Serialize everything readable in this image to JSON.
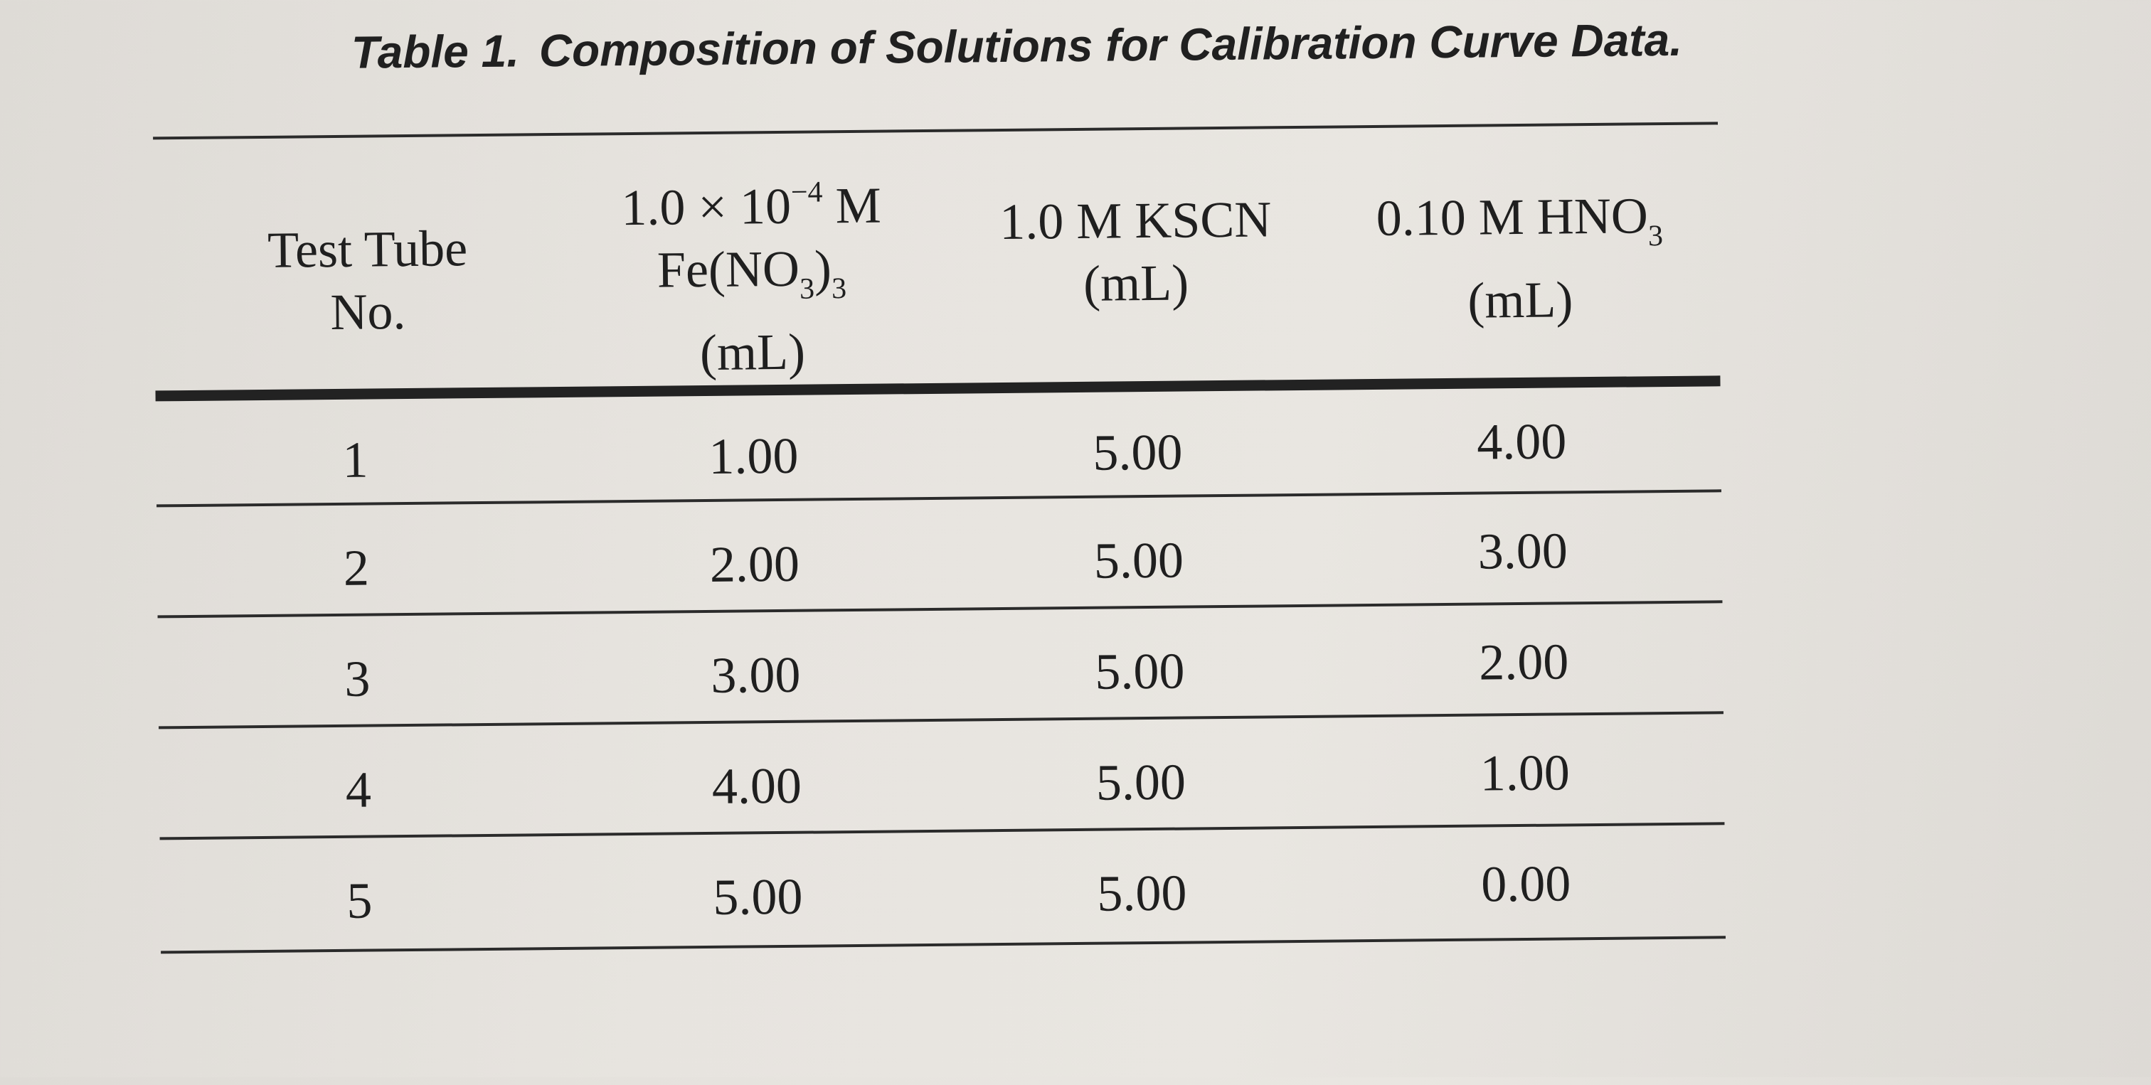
{
  "table": {
    "label": "Table 1.",
    "title": "Composition of Solutions for Calibration Curve Data.",
    "headers": {
      "col1": {
        "line1": "Test Tube",
        "line2": "No."
      },
      "col2": {
        "conc_prefix": "1.0 × 10",
        "conc_exp": "−4",
        "conc_unit": " M",
        "species_a": "Fe(NO",
        "species_sub1": "3",
        "species_b": ")",
        "species_sub2": "3",
        "unit": "(mL)"
      },
      "col3": {
        "line1": "1.0 M KSCN",
        "line2": "(mL)"
      },
      "col4": {
        "line1_main": "0.10 M HNO",
        "line1_sub": "3",
        "line2": "(mL)"
      }
    },
    "rows": [
      [
        "1",
        "1.00",
        "5.00",
        "4.00"
      ],
      [
        "2",
        "2.00",
        "5.00",
        "3.00"
      ],
      [
        "3",
        "3.00",
        "5.00",
        "2.00"
      ],
      [
        "4",
        "4.00",
        "5.00",
        "1.00"
      ],
      [
        "5",
        "5.00",
        "5.00",
        "0.00"
      ]
    ]
  }
}
